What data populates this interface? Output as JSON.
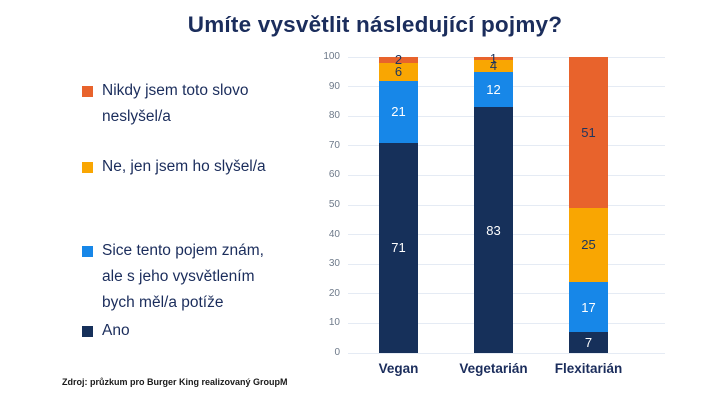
{
  "title": "Umíte vysvětlit následující pojmy?",
  "legend": {
    "items": [
      {
        "label": "Nikdy jsem toto slovo\nneslyšel/a",
        "color": "#e8632c"
      },
      {
        "label": "Ne, jen jsem ho slyšel/a",
        "color": "#f9a602"
      },
      {
        "label": "Sice tento pojem znám,\nale s jeho vysvětlením\nbych měl/a potíže",
        "color": "#1787e8"
      },
      {
        "label": "Ano",
        "color": "#16305a"
      }
    ]
  },
  "chart_data": {
    "type": "bar",
    "stacked": true,
    "title": "Umíte vysvětlit následující pojmy?",
    "categories": [
      "Vegan",
      "Vegetarián",
      "Flexitarián"
    ],
    "series": [
      {
        "name": "Ano",
        "color": "#16305a",
        "label_color": "#ffffff",
        "values": [
          71,
          83,
          7
        ]
      },
      {
        "name": "Sice tento pojem znám, ale s jeho vysvětlením bych měl/a potíže",
        "color": "#1787e8",
        "label_color": "#ffffff",
        "values": [
          21,
          12,
          17
        ]
      },
      {
        "name": "Ne, jen jsem ho slyšel/a",
        "color": "#f9a602",
        "label_color": "#1e355e",
        "values": [
          6,
          4,
          25
        ]
      },
      {
        "name": "Nikdy jsem toto slovo neslyšel/a",
        "color": "#e8632c",
        "label_color": "#1e355e",
        "values": [
          2,
          1,
          51
        ]
      }
    ],
    "xlabel": "",
    "ylabel": "",
    "ylim": [
      0,
      100
    ],
    "yticks": [
      0,
      10,
      20,
      30,
      40,
      50,
      60,
      70,
      80,
      90,
      100
    ],
    "grid": true,
    "legend_position": "left"
  },
  "colors": {
    "background": "#ffffff",
    "title_text": "#1b2d5c",
    "tick_text": "#6e7a8a",
    "gridline": "#e5ebf4"
  },
  "footer": {
    "source": "Zdroj: průzkum pro Burger King realizovaný GroupM"
  }
}
